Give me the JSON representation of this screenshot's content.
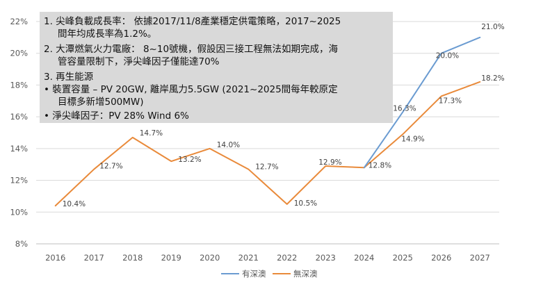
{
  "chart_data": {
    "type": "line",
    "categories": [
      "2016",
      "2017",
      "2018",
      "2019",
      "2020",
      "2021",
      "2022",
      "2023",
      "2024",
      "2025",
      "2026",
      "2027"
    ],
    "ylim": [
      0.08,
      0.22
    ],
    "yticks": [
      "8%",
      "10%",
      "12%",
      "14%",
      "16%",
      "18%",
      "20%",
      "22%"
    ],
    "series": [
      {
        "name": "有深澳",
        "color": "#6a9bd1",
        "values": [
          null,
          null,
          null,
          null,
          null,
          null,
          null,
          null,
          0.128,
          0.163,
          0.2,
          0.21
        ],
        "labels": [
          null,
          null,
          null,
          null,
          null,
          null,
          null,
          null,
          null,
          "16.3%",
          "20.0%",
          "21.0%"
        ]
      },
      {
        "name": "無深澳",
        "color": "#e98a3a",
        "values": [
          0.104,
          0.127,
          0.147,
          0.132,
          0.14,
          0.127,
          0.105,
          0.129,
          0.128,
          0.149,
          0.173,
          0.182
        ],
        "labels": [
          "10.4%",
          "12.7%",
          "14.7%",
          "13.2%",
          "14.0%",
          "12.7%",
          "10.5%",
          "12.9%",
          "12.8%",
          "14.9%",
          "17.3%",
          "18.2%"
        ]
      }
    ],
    "grid": true,
    "legend": "bottom"
  },
  "notes": {
    "line1": "1.  尖峰負載成長率： 依據2017/11/8產業穩定供電策略，2017~2025",
    "line1b": "間年均成長率為1.2%。",
    "line2": "2.  大潭燃氣火力電廠： 8~10號機，假設因三接工程無法如期完成，海",
    "line2b": "管容量限制下，淨尖峰因子僅能達70%",
    "line3": "3.  再生能源",
    "line4": "•   裝置容量 – PV 20GW, 離岸風力5.5GW (2021~2025間每年較原定",
    "line4b": "目標多新增500MW)",
    "line5": "•   淨尖峰因子：PV 28%  Wind 6%"
  }
}
